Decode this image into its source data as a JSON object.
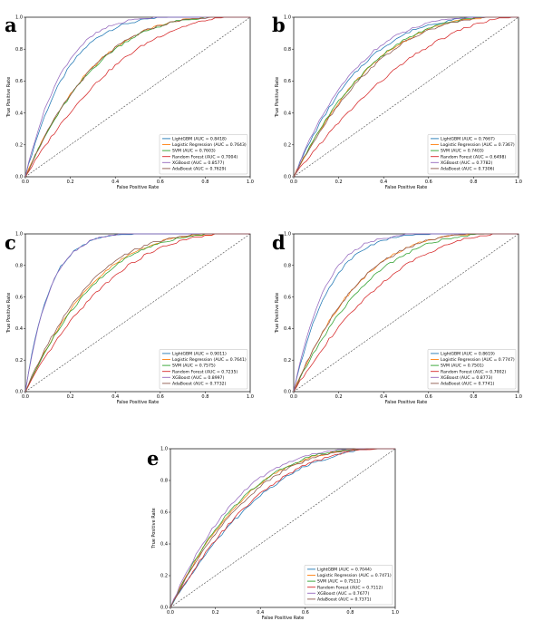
{
  "colors": {
    "LightGBM": "#1f77b4",
    "Logistic Regression": "#ff7f0e",
    "SVM": "#2ca02c",
    "Random Forest": "#d62728",
    "XGBoost": "#9467bd",
    "AdaBoost": "#8c564b"
  },
  "chart_data": [
    {
      "panel": "a",
      "type": "line",
      "xlabel": "False Positive Rate",
      "ylabel": "True Positive Rate",
      "xlim": [
        0,
        1
      ],
      "ylim": [
        0,
        1
      ],
      "xticks": [
        "0.0",
        "0.2",
        "0.4",
        "0.6",
        "0.8",
        "1.0"
      ],
      "yticks": [
        "0.0",
        "0.2",
        "0.4",
        "0.6",
        "0.8",
        "1.0"
      ],
      "legend_position": "lower-right",
      "series": [
        {
          "name": "LightGBM",
          "legend": "LightGBM  (AUC = 0.8418)",
          "auc": 0.8418
        },
        {
          "name": "Logistic Regression",
          "legend": "Logistic Regression  (AUC = 0.7643)",
          "auc": 0.7643
        },
        {
          "name": "SVM",
          "legend": "SVM  (AUC = 0.7603)",
          "auc": 0.7603
        },
        {
          "name": "Random Forest",
          "legend": "Random Forest  (AUC = 0.7004)",
          "auc": 0.7004
        },
        {
          "name": "XGBoost",
          "legend": "XGBoost  (AUC = 0.8577)",
          "auc": 0.8577
        },
        {
          "name": "AdaBoost",
          "legend": "AdaBoost  (AUC = 0.7629)",
          "auc": 0.7629
        }
      ]
    },
    {
      "panel": "b",
      "type": "line",
      "xlabel": "False Positive Rate",
      "ylabel": "True Positive Rate",
      "xlim": [
        0,
        1
      ],
      "ylim": [
        0,
        1
      ],
      "xticks": [
        "0.0",
        "0.2",
        "0.4",
        "0.6",
        "0.8",
        "1.0"
      ],
      "yticks": [
        "0.0",
        "0.2",
        "0.4",
        "0.6",
        "0.8",
        "1.0"
      ],
      "legend_position": "lower-right",
      "series": [
        {
          "name": "LightGBM",
          "legend": "LightGBM  (AUC = 0.7667)",
          "auc": 0.7667
        },
        {
          "name": "Logistic Regression",
          "legend": "Logistic Regression  (AUC = 0.7367)",
          "auc": 0.7367
        },
        {
          "name": "SVM",
          "legend": "SVM  (AUC = 0.7403)",
          "auc": 0.7403
        },
        {
          "name": "Random Forest",
          "legend": "Random Forest  (AUC = 0.6498)",
          "auc": 0.6498
        },
        {
          "name": "XGBoost",
          "legend": "XGBoost  (AUC = 0.7782)",
          "auc": 0.7782
        },
        {
          "name": "AdaBoost",
          "legend": "AdaBoost  (AUC = 0.7306)",
          "auc": 0.7306
        }
      ]
    },
    {
      "panel": "c",
      "type": "line",
      "xlabel": "False Positive Rate",
      "ylabel": "True Positive Rate",
      "xlim": [
        0,
        1
      ],
      "ylim": [
        0,
        1
      ],
      "xticks": [
        "0.0",
        "0.2",
        "0.4",
        "0.6",
        "0.8",
        "1.0"
      ],
      "yticks": [
        "0.0",
        "0.2",
        "0.4",
        "0.6",
        "0.8",
        "1.0"
      ],
      "legend_position": "lower-right",
      "series": [
        {
          "name": "LightGBM",
          "legend": "LightGBM  (AUC = 0.9011)",
          "auc": 0.9011
        },
        {
          "name": "Logistic Regression",
          "legend": "Logistic Regression  (AUC = 0.7641)",
          "auc": 0.7641
        },
        {
          "name": "SVM",
          "legend": "SVM  (AUC = 0.7575)",
          "auc": 0.7575
        },
        {
          "name": "Random Forest",
          "legend": "Random Forest  (AUC = 0.7235)",
          "auc": 0.7235
        },
        {
          "name": "XGBoost",
          "legend": "XGBoost  (AUC = 0.8997)",
          "auc": 0.8997
        },
        {
          "name": "AdaBoost",
          "legend": "AdaBoost  (AUC = 0.7732)",
          "auc": 0.7732
        }
      ]
    },
    {
      "panel": "d",
      "type": "line",
      "xlabel": "False Positive Rate",
      "ylabel": "True Positive Rate",
      "xlim": [
        0,
        1
      ],
      "ylim": [
        0,
        1
      ],
      "xticks": [
        "0.0",
        "0.2",
        "0.4",
        "0.6",
        "0.8",
        "1.0"
      ],
      "yticks": [
        "0.0",
        "0.2",
        "0.4",
        "0.6",
        "0.8",
        "1.0"
      ],
      "legend_position": "lower-right",
      "series": [
        {
          "name": "LightGBM",
          "legend": "LightGBM  (AUC = 0.8619)",
          "auc": 0.8619
        },
        {
          "name": "Logistic Regression",
          "legend": "Logistic Regression  (AUC = 0.7747)",
          "auc": 0.7747
        },
        {
          "name": "SVM",
          "legend": "SVM  (AUC = 0.7501)",
          "auc": 0.7501
        },
        {
          "name": "Random Forest",
          "legend": "Random Forest  (AUC = 0.7002)",
          "auc": 0.7002
        },
        {
          "name": "XGBoost",
          "legend": "XGBoost  (AUC = 0.8773)",
          "auc": 0.8773
        },
        {
          "name": "AdaBoost",
          "legend": "AdaBoost  (AUC = 0.7741)",
          "auc": 0.7741
        }
      ]
    },
    {
      "panel": "e",
      "type": "line",
      "xlabel": "False Positive Rate",
      "ylabel": "True Positive Rate",
      "xlim": [
        0,
        1
      ],
      "ylim": [
        0,
        1
      ],
      "xticks": [
        "0.0",
        "0.2",
        "0.4",
        "0.6",
        "0.8",
        "1.0"
      ],
      "yticks": [
        "0.0",
        "0.2",
        "0.4",
        "0.6",
        "0.8",
        "1.0"
      ],
      "legend_position": "lower-right",
      "series": [
        {
          "name": "LightGBM",
          "legend": "LightGBM  (AUC = 0.7044)",
          "auc": 0.7044
        },
        {
          "name": "Logistic Regression",
          "legend": "Logistic Regression  (AUC = 0.7471)",
          "auc": 0.7471
        },
        {
          "name": "SVM",
          "legend": "SVM  (AUC = 0.7511)",
          "auc": 0.7511
        },
        {
          "name": "Random Forest",
          "legend": "Random Forest  (AUC = 0.7112)",
          "auc": 0.7112
        },
        {
          "name": "XGBoost",
          "legend": "XGBoost  (AUC = 0.7677)",
          "auc": 0.7677
        },
        {
          "name": "AdaBoost",
          "legend": "AdaBoost  (AUC = 0.7371)",
          "auc": 0.7371
        }
      ]
    }
  ]
}
